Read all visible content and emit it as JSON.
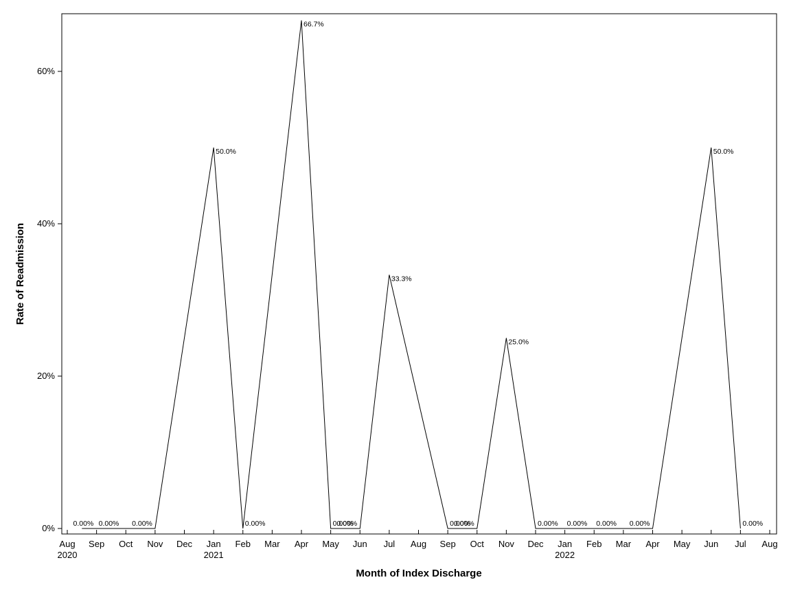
{
  "chart_data": {
    "type": "line",
    "title": "",
    "xlabel": "Month of Index Discharge",
    "ylabel": "Rate of Readmission",
    "ylim": [
      0,
      0.67
    ],
    "y_ticks": [
      {
        "value": 0,
        "label": "0%"
      },
      {
        "value": 0.2,
        "label": "20%"
      },
      {
        "value": 0.4,
        "label": "40%"
      },
      {
        "value": 0.6,
        "label": "60%"
      }
    ],
    "x_months": [
      "Aug",
      "Sep",
      "Oct",
      "Nov",
      "Dec",
      "Jan",
      "Feb",
      "Mar",
      "Apr",
      "May",
      "Jun",
      "Jul",
      "Aug",
      "Sep",
      "Oct",
      "Nov",
      "Dec",
      "Jan",
      "Feb",
      "Mar",
      "Apr",
      "May",
      "Jun",
      "Jul",
      "Aug"
    ],
    "x_years": [
      {
        "month_index": 0,
        "label": "2020"
      },
      {
        "month_index": 5,
        "label": "2021"
      },
      {
        "month_index": 17,
        "label": "2022"
      }
    ],
    "grid": false,
    "legend": "none",
    "series": [
      {
        "points": [
          {
            "m": 0.5,
            "y": 0,
            "label": "0.00%"
          },
          {
            "m": 1.0,
            "y": 0,
            "label": "0.00%"
          },
          {
            "m": 2.0,
            "y": 0,
            "label": ""
          },
          {
            "m": 3.0,
            "y": 0,
            "label": "0.00%"
          },
          {
            "m": 5.0,
            "y": 0.5,
            "label": "50.0%"
          },
          {
            "m": 6.0,
            "y": 0,
            "label": "0.00%"
          },
          {
            "m": 8.0,
            "y": 0.667,
            "label": "66.7%"
          },
          {
            "m": 9.0,
            "y": 0,
            "label": "0.00%"
          },
          {
            "m": 10.0,
            "y": 0,
            "label": "0.00%"
          },
          {
            "m": 11.0,
            "y": 0.333,
            "label": "33.3%"
          },
          {
            "m": 13.0,
            "y": 0,
            "label": "0.00%"
          },
          {
            "m": 14.0,
            "y": 0,
            "label": "0.00%"
          },
          {
            "m": 15.0,
            "y": 0.25,
            "label": "25.0%"
          },
          {
            "m": 16.0,
            "y": 0,
            "label": "0.00%"
          },
          {
            "m": 17.0,
            "y": 0,
            "label": "0.00%"
          },
          {
            "m": 18.0,
            "y": 0,
            "label": "0.00%"
          },
          {
            "m": 20.0,
            "y": 0,
            "label": "0.00%"
          },
          {
            "m": 22.0,
            "y": 0.5,
            "label": "50.0%"
          },
          {
            "m": 23.0,
            "y": 0,
            "label": "0.00%"
          }
        ]
      }
    ]
  }
}
